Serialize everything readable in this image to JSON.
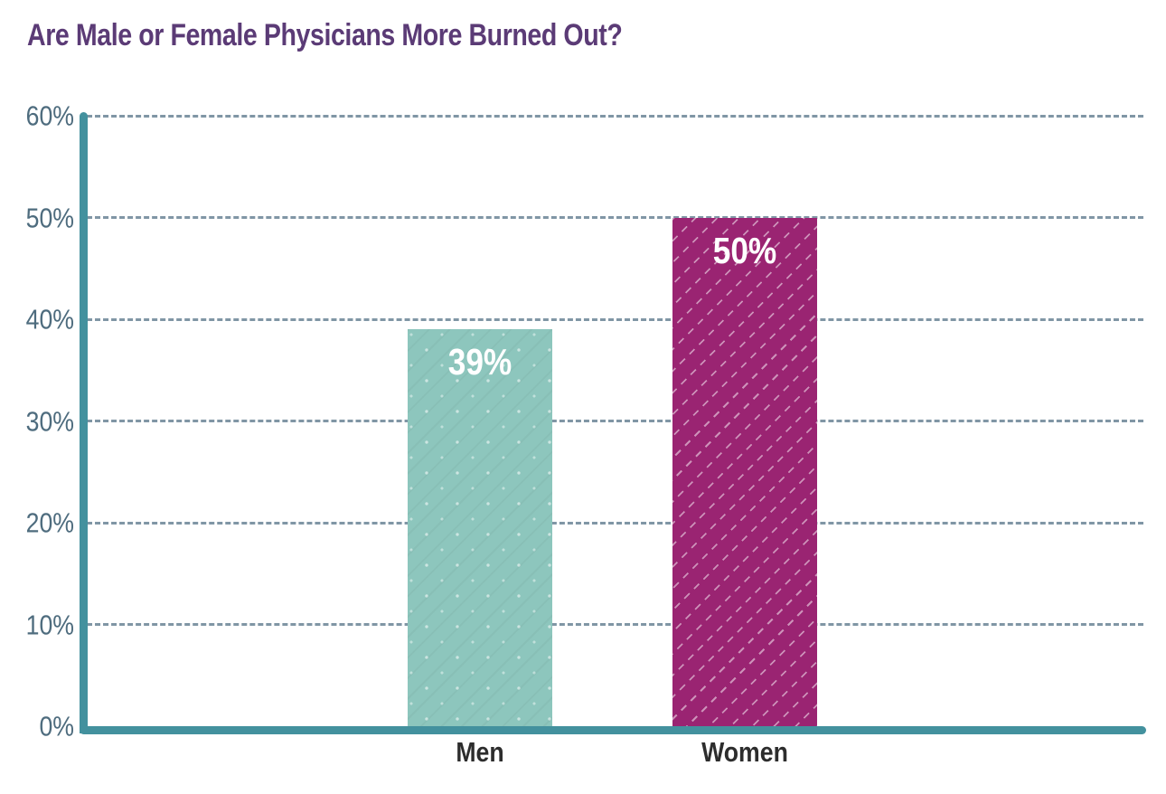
{
  "page": {
    "background": "#ffffff"
  },
  "chart_data": {
    "type": "bar",
    "title": "Are Male or Female Physicians More Burned Out?",
    "categories": [
      "Men",
      "Women"
    ],
    "values": [
      39,
      50
    ],
    "value_labels": [
      "39%",
      "50%"
    ],
    "series": [
      {
        "name": "Men",
        "value": 39,
        "label": "39%",
        "color": "#8dc6bd",
        "pattern": "dots"
      },
      {
        "name": "Women",
        "value": 50,
        "label": "50%",
        "color": "#9a2472",
        "pattern": "diagonal-dashes"
      }
    ],
    "xlabel": "",
    "ylabel": "",
    "ylim": [
      0,
      60
    ],
    "ytick_step": 10,
    "ytick_labels": [
      "0%",
      "10%",
      "20%",
      "30%",
      "40%",
      "50%",
      "60%"
    ],
    "grid": "horizontal-dashed",
    "legend": "none",
    "colors": {
      "title": "#5b3b76",
      "axis": "#43919e",
      "gridline": "#8096a5",
      "tick_label": "#4e6c7e",
      "category_label": "#2d2d2d",
      "value_label": "#ffffff"
    }
  }
}
